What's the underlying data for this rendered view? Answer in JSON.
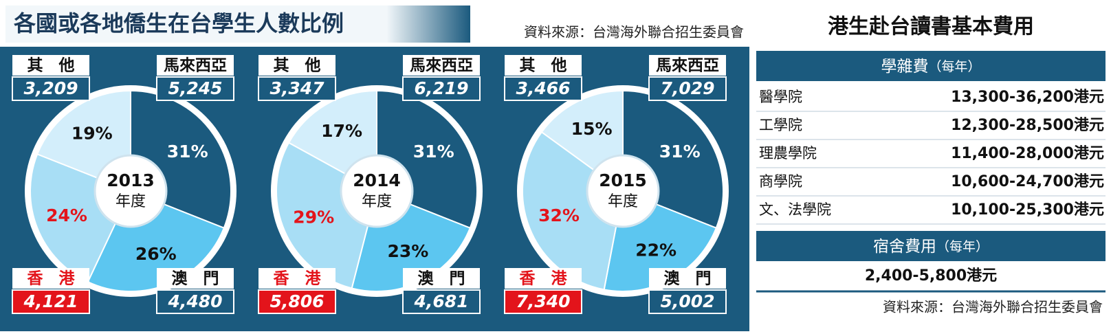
{
  "title": "各國或各地僑生在台學生人數比例",
  "source": "資料來源：台灣海外聯合招生委員會",
  "chart_data": [
    {
      "type": "pie",
      "title": "2013",
      "subtitle": "年度",
      "categories": [
        "馬來西亞",
        "澳　門",
        "香　港",
        "其　他"
      ],
      "values": [
        31,
        26,
        24,
        19
      ],
      "value_labels": [
        "31%",
        "26%",
        "24%",
        "19%"
      ],
      "counts": [
        5245,
        4480,
        4121,
        3209
      ],
      "count_labels": [
        "5,245",
        "4,480",
        "4,121",
        "3,209"
      ],
      "colors": [
        "#1b5a7e",
        "#5cc6f0",
        "#a8def5",
        "#d3eefb"
      ]
    },
    {
      "type": "pie",
      "title": "2014",
      "subtitle": "年度",
      "categories": [
        "馬來西亞",
        "澳　門",
        "香　港",
        "其　他"
      ],
      "values": [
        31,
        23,
        29,
        17
      ],
      "value_labels": [
        "31%",
        "23%",
        "29%",
        "17%"
      ],
      "counts": [
        6219,
        4681,
        5806,
        3347
      ],
      "count_labels": [
        "6,219",
        "4,681",
        "5,806",
        "3,347"
      ],
      "colors": [
        "#1b5a7e",
        "#5cc6f0",
        "#a8def5",
        "#d3eefb"
      ]
    },
    {
      "type": "pie",
      "title": "2015",
      "subtitle": "年度",
      "categories": [
        "馬來西亞",
        "澳　門",
        "香　港",
        "其　他"
      ],
      "values": [
        31,
        22,
        32,
        15
      ],
      "value_labels": [
        "31%",
        "22%",
        "32%",
        "15%"
      ],
      "counts": [
        7029,
        5002,
        7340,
        3466
      ],
      "count_labels": [
        "7,029",
        "5,002",
        "7,340",
        "3,466"
      ],
      "colors": [
        "#1b5a7e",
        "#5cc6f0",
        "#a8def5",
        "#d3eefb"
      ]
    }
  ],
  "fees": {
    "title": "港生赴台讀書基本費用",
    "tuition_header": "學雜費",
    "tuition_note": "（每年）",
    "rows": [
      [
        "醫學院",
        "13,300-36,200港元"
      ],
      [
        "工學院",
        "12,300-28,500港元"
      ],
      [
        "理農學院",
        "11,400-28,000港元"
      ],
      [
        "商學院",
        "10,600-24,700港元"
      ],
      [
        "文、法學院",
        "10,100-25,300港元"
      ]
    ],
    "dorm_header": "宿舍費用",
    "dorm_note": "（每年）",
    "dorm_value": "2,400-5,800港元",
    "source": "資料來源：台灣海外聯合招生委員會"
  }
}
